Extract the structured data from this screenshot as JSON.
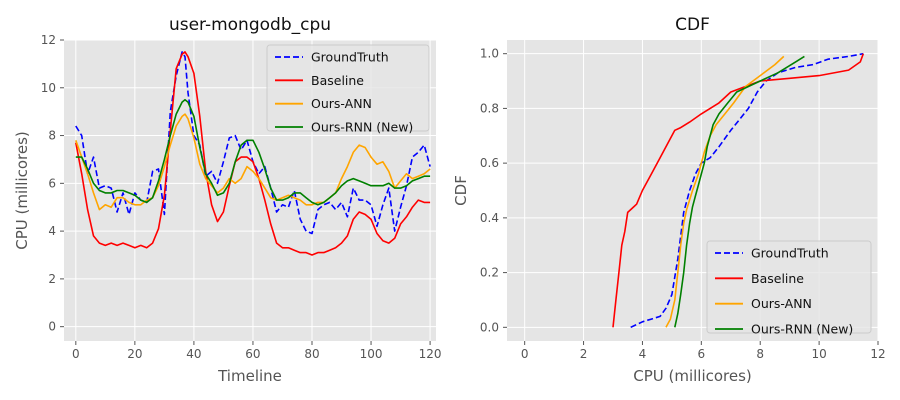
{
  "chart_data": [
    {
      "type": "line",
      "title": "user-mongodb_cpu",
      "xlabel": "Timeline",
      "ylabel": "CPU (millicores)",
      "xlim": [
        -4,
        122
      ],
      "ylim": [
        -0.6,
        12
      ],
      "xticks": [
        0,
        20,
        40,
        60,
        80,
        100,
        120
      ],
      "yticks": [
        0,
        2,
        4,
        6,
        8,
        10,
        12
      ],
      "grid": true,
      "legend_position": "top-right",
      "series": [
        {
          "name": "GroundTruth",
          "color": "#0000ff",
          "dash": "dashed",
          "x": [
            0,
            2,
            4,
            6,
            8,
            10,
            12,
            14,
            16,
            18,
            20,
            22,
            24,
            26,
            28,
            30,
            32,
            34,
            36,
            37,
            38,
            40,
            42,
            44,
            46,
            48,
            50,
            52,
            54,
            56,
            58,
            60,
            62,
            64,
            66,
            68,
            70,
            72,
            74,
            76,
            78,
            80,
            82,
            84,
            86,
            88,
            90,
            92,
            94,
            96,
            98,
            100,
            102,
            104,
            106,
            108,
            110,
            112,
            114,
            116,
            118,
            120
          ],
          "y": [
            8.4,
            8.0,
            6.4,
            7.1,
            5.8,
            5.9,
            5.8,
            4.8,
            5.6,
            4.7,
            5.6,
            5.3,
            5.2,
            6.5,
            6.6,
            4.7,
            9.0,
            10.5,
            11.5,
            11.3,
            9.8,
            8.0,
            7.6,
            6.3,
            6.5,
            6.0,
            6.9,
            7.9,
            8.0,
            7.4,
            7.8,
            6.9,
            6.4,
            6.7,
            5.8,
            4.8,
            5.1,
            5.0,
            5.7,
            4.5,
            4.0,
            3.9,
            4.9,
            5.1,
            5.2,
            4.9,
            5.2,
            4.6,
            5.8,
            5.3,
            5.3,
            5.1,
            4.2,
            5.1,
            5.8,
            4.0,
            5.0,
            5.9,
            7.1,
            7.3,
            7.6,
            6.7
          ]
        },
        {
          "name": "Baseline",
          "color": "#ff0000",
          "dash": "solid",
          "x": [
            0,
            2,
            4,
            6,
            8,
            10,
            12,
            14,
            16,
            18,
            20,
            22,
            24,
            26,
            28,
            30,
            32,
            34,
            36,
            37,
            38,
            40,
            42,
            44,
            46,
            48,
            50,
            52,
            54,
            56,
            58,
            60,
            62,
            64,
            66,
            68,
            70,
            72,
            74,
            76,
            78,
            80,
            82,
            84,
            86,
            88,
            90,
            92,
            94,
            96,
            98,
            100,
            102,
            104,
            106,
            108,
            110,
            112,
            114,
            116,
            118,
            120
          ],
          "y": [
            7.7,
            6.4,
            4.9,
            3.8,
            3.5,
            3.4,
            3.5,
            3.4,
            3.5,
            3.4,
            3.3,
            3.4,
            3.3,
            3.5,
            4.1,
            5.5,
            8.2,
            10.8,
            11.4,
            11.5,
            11.3,
            10.6,
            8.8,
            6.5,
            5.1,
            4.4,
            4.8,
            5.9,
            6.9,
            7.1,
            7.1,
            6.9,
            6.2,
            5.3,
            4.3,
            3.5,
            3.3,
            3.3,
            3.2,
            3.1,
            3.1,
            3.0,
            3.1,
            3.1,
            3.2,
            3.3,
            3.5,
            3.8,
            4.5,
            4.8,
            4.7,
            4.5,
            3.9,
            3.6,
            3.5,
            3.7,
            4.3,
            4.6,
            5.0,
            5.3,
            5.2,
            5.2
          ]
        },
        {
          "name": "Ours-ANN",
          "color": "#ffa500",
          "dash": "solid",
          "x": [
            0,
            2,
            4,
            6,
            8,
            10,
            12,
            14,
            16,
            18,
            20,
            22,
            24,
            26,
            28,
            30,
            32,
            34,
            36,
            37,
            38,
            40,
            42,
            44,
            46,
            48,
            50,
            52,
            54,
            56,
            58,
            60,
            62,
            64,
            66,
            68,
            70,
            72,
            74,
            76,
            78,
            80,
            82,
            84,
            86,
            88,
            90,
            92,
            94,
            96,
            98,
            100,
            102,
            104,
            106,
            108,
            110,
            112,
            114,
            116,
            118,
            120
          ],
          "y": [
            7.8,
            7.1,
            6.4,
            5.6,
            4.9,
            5.1,
            5.0,
            5.4,
            5.4,
            5.2,
            5.1,
            5.1,
            5.3,
            5.4,
            5.9,
            6.7,
            7.6,
            8.4,
            8.8,
            8.9,
            8.7,
            7.9,
            6.8,
            6.2,
            5.9,
            5.6,
            5.8,
            6.2,
            6.0,
            6.2,
            6.7,
            6.5,
            6.2,
            5.8,
            5.4,
            5.3,
            5.4,
            5.5,
            5.4,
            5.3,
            5.1,
            5.1,
            5.2,
            5.2,
            5.4,
            5.6,
            6.2,
            6.7,
            7.3,
            7.6,
            7.5,
            7.1,
            6.8,
            6.9,
            6.5,
            5.8,
            6.1,
            6.4,
            6.2,
            6.3,
            6.4,
            6.6
          ]
        },
        {
          "name": "Ours-RNN (New)",
          "color": "#008000",
          "dash": "solid",
          "x": [
            0,
            2,
            4,
            6,
            8,
            10,
            12,
            14,
            16,
            18,
            20,
            22,
            24,
            26,
            28,
            30,
            32,
            34,
            36,
            37,
            38,
            40,
            42,
            44,
            46,
            48,
            50,
            52,
            54,
            56,
            58,
            60,
            62,
            64,
            66,
            68,
            70,
            72,
            74,
            76,
            78,
            80,
            82,
            84,
            86,
            88,
            90,
            92,
            94,
            96,
            98,
            100,
            102,
            104,
            106,
            108,
            110,
            112,
            114,
            116,
            118,
            120
          ],
          "y": [
            7.1,
            7.1,
            6.6,
            6.0,
            5.7,
            5.6,
            5.6,
            5.7,
            5.7,
            5.6,
            5.5,
            5.3,
            5.2,
            5.4,
            6.1,
            7.0,
            8.0,
            8.9,
            9.4,
            9.5,
            9.4,
            8.8,
            7.5,
            6.4,
            6.0,
            5.5,
            5.6,
            6.0,
            6.9,
            7.6,
            7.8,
            7.8,
            7.3,
            6.6,
            5.8,
            5.3,
            5.3,
            5.4,
            5.6,
            5.6,
            5.4,
            5.2,
            5.1,
            5.2,
            5.4,
            5.6,
            5.9,
            6.1,
            6.2,
            6.1,
            6.0,
            5.9,
            5.9,
            5.9,
            6.0,
            5.8,
            5.8,
            5.9,
            6.1,
            6.2,
            6.3,
            6.3
          ]
        }
      ]
    },
    {
      "type": "line",
      "title": "CDF",
      "xlabel": "CPU (millicores)",
      "ylabel": "CDF",
      "xlim": [
        -0.6,
        12
      ],
      "ylim": [
        -0.05,
        1.05
      ],
      "xticks": [
        0,
        2,
        4,
        6,
        8,
        10,
        12
      ],
      "yticks": [
        0.0,
        0.2,
        0.4,
        0.6,
        0.8,
        1.0
      ],
      "grid": true,
      "legend_position": "bottom-right",
      "series": [
        {
          "name": "GroundTruth",
          "color": "#0000ff",
          "dash": "dashed",
          "x": [
            3.6,
            4.0,
            4.3,
            4.6,
            4.8,
            5.0,
            5.2,
            5.4,
            5.6,
            5.8,
            6.0,
            6.3,
            6.6,
            7.0,
            7.3,
            7.6,
            7.9,
            8.2,
            8.6,
            9.2,
            9.8,
            10.3,
            11.0,
            11.5
          ],
          "y": [
            0.0,
            0.02,
            0.03,
            0.04,
            0.07,
            0.12,
            0.25,
            0.42,
            0.5,
            0.56,
            0.6,
            0.62,
            0.66,
            0.72,
            0.76,
            0.8,
            0.86,
            0.9,
            0.93,
            0.95,
            0.96,
            0.98,
            0.99,
            1.0
          ]
        },
        {
          "name": "Baseline",
          "color": "#ff0000",
          "dash": "solid",
          "x": [
            3.0,
            3.1,
            3.2,
            3.3,
            3.4,
            3.5,
            3.8,
            4.0,
            4.3,
            4.6,
            4.9,
            5.1,
            5.3,
            5.6,
            6.0,
            6.6,
            7.0,
            7.5,
            8.0,
            9.0,
            10.0,
            11.0,
            11.4,
            11.5
          ],
          "y": [
            0.0,
            0.1,
            0.2,
            0.3,
            0.35,
            0.42,
            0.45,
            0.5,
            0.56,
            0.62,
            0.68,
            0.72,
            0.73,
            0.75,
            0.78,
            0.82,
            0.86,
            0.88,
            0.9,
            0.91,
            0.92,
            0.94,
            0.97,
            1.0
          ]
        },
        {
          "name": "Ours-ANN",
          "color": "#ffa500",
          "dash": "solid",
          "x": [
            4.8,
            4.95,
            5.1,
            5.2,
            5.3,
            5.4,
            5.5,
            5.7,
            5.9,
            6.1,
            6.3,
            6.5,
            6.8,
            7.1,
            7.5,
            8.0,
            8.5,
            8.8
          ],
          "y": [
            0.0,
            0.03,
            0.1,
            0.2,
            0.3,
            0.38,
            0.43,
            0.5,
            0.56,
            0.64,
            0.7,
            0.74,
            0.78,
            0.82,
            0.88,
            0.92,
            0.96,
            0.99
          ]
        },
        {
          "name": "Ours-RNN (New)",
          "color": "#008000",
          "dash": "solid",
          "x": [
            5.1,
            5.2,
            5.3,
            5.4,
            5.5,
            5.6,
            5.7,
            5.8,
            5.9,
            6.0,
            6.1,
            6.2,
            6.4,
            6.6,
            6.9,
            7.2,
            7.6,
            8.0,
            8.6,
            9.2,
            9.5
          ],
          "y": [
            0.0,
            0.05,
            0.12,
            0.2,
            0.3,
            0.38,
            0.44,
            0.48,
            0.52,
            0.56,
            0.6,
            0.66,
            0.74,
            0.78,
            0.82,
            0.86,
            0.88,
            0.9,
            0.93,
            0.97,
            0.99
          ]
        }
      ]
    }
  ]
}
